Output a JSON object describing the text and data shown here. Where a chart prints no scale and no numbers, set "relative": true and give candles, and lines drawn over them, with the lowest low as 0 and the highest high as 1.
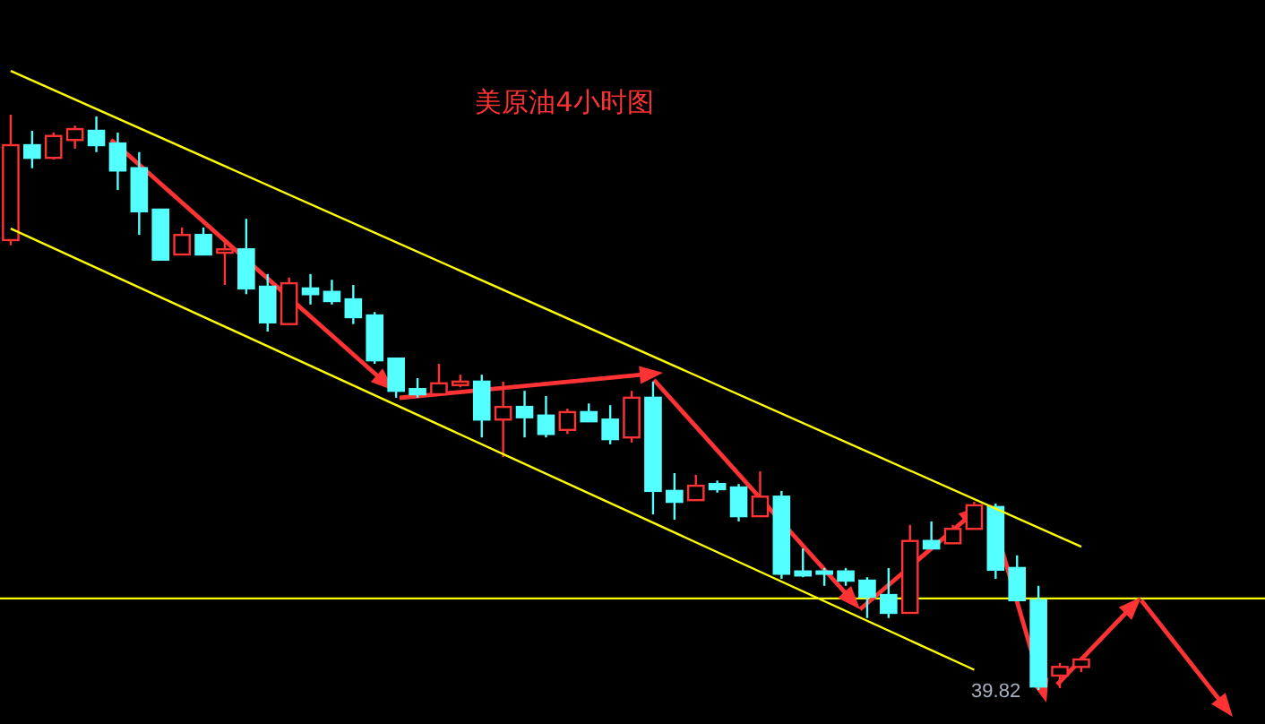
{
  "chart_data": {
    "type": "candlestick",
    "title": "美原油4小时图",
    "relative": true,
    "categories": [
      null,
      null,
      null,
      null,
      null,
      null,
      null,
      null,
      null,
      null,
      null,
      null,
      null,
      null,
      null,
      null,
      null,
      null,
      null,
      null,
      null,
      null,
      null,
      null,
      null,
      null,
      null,
      null,
      null,
      null,
      null,
      null,
      null,
      null,
      null,
      null,
      null,
      null,
      null,
      null,
      null,
      null,
      null,
      null,
      null,
      null,
      null,
      null,
      null,
      null,
      null
    ],
    "ohlc": [
      [
        0.782,
        1,
        0.773,
        0.947
      ],
      [
        0.947,
        0.972,
        0.907,
        0.925
      ],
      [
        0.925,
        0.969,
        0.922,
        0.963
      ],
      [
        0.956,
        0.981,
        0.941,
        0.975
      ],
      [
        0.972,
        0.997,
        0.935,
        0.947
      ],
      [
        0.95,
        0.969,
        0.869,
        0.903
      ],
      [
        0.907,
        0.935,
        0.791,
        0.832
      ],
      [
        0.835,
        0.835,
        0.748,
        0.748
      ],
      [
        0.757,
        0.804,
        0.757,
        0.791
      ],
      [
        0.791,
        0.804,
        0.757,
        0.757
      ],
      [
        0.76,
        0.785,
        0.704,
        0.766
      ],
      [
        0.766,
        0.819,
        0.688,
        0.698
      ],
      [
        0.701,
        0.723,
        0.623,
        0.639
      ],
      [
        0.636,
        0.717,
        0.636,
        0.707
      ],
      [
        0.698,
        0.723,
        0.67,
        0.688
      ],
      [
        0.692,
        0.713,
        0.67,
        0.676
      ],
      [
        0.679,
        0.704,
        0.636,
        0.648
      ],
      [
        0.651,
        0.657,
        0.567,
        0.573
      ],
      [
        0.576,
        0.576,
        0.508,
        0.52
      ],
      [
        0.523,
        0.542,
        0.508,
        0.514
      ],
      [
        0.514,
        0.567,
        0.514,
        0.533
      ],
      [
        0.53,
        0.548,
        0.526,
        0.536
      ],
      [
        0.536,
        0.548,
        0.439,
        0.47
      ],
      [
        0.47,
        0.536,
        0.405,
        0.492
      ],
      [
        0.492,
        0.52,
        0.439,
        0.474
      ],
      [
        0.477,
        0.511,
        0.439,
        0.445
      ],
      [
        0.452,
        0.489,
        0.445,
        0.483
      ],
      [
        0.483,
        0.498,
        0.467,
        0.467
      ],
      [
        0.47,
        0.495,
        0.427,
        0.436
      ],
      [
        0.439,
        0.52,
        0.43,
        0.508
      ],
      [
        0.508,
        0.536,
        0.305,
        0.346
      ],
      [
        0.346,
        0.377,
        0.296,
        0.327
      ],
      [
        0.33,
        0.374,
        0.33,
        0.355
      ],
      [
        0.358,
        0.364,
        0.343,
        0.349
      ],
      [
        0.352,
        0.358,
        0.293,
        0.302
      ],
      [
        0.302,
        0.38,
        0.302,
        0.336
      ],
      [
        0.336,
        0.346,
        0.193,
        0.202
      ],
      [
        0.206,
        0.246,
        0.196,
        0.199
      ],
      [
        0.206,
        0.212,
        0.181,
        0.202
      ],
      [
        0.206,
        0.212,
        0.181,
        0.19
      ],
      [
        0.19,
        0.196,
        0.125,
        0.162
      ],
      [
        0.165,
        0.212,
        0.125,
        0.134
      ],
      [
        0.134,
        0.287,
        0.134,
        0.259
      ],
      [
        0.259,
        0.293,
        0.246,
        0.246
      ],
      [
        0.255,
        0.287,
        0.255,
        0.28
      ],
      [
        0.28,
        0.327,
        0.28,
        0.321
      ],
      [
        0.318,
        0.324,
        0.193,
        0.209
      ],
      [
        0.212,
        0.234,
        0.156,
        0.156
      ],
      [
        0.156,
        0.181,
        0,
        0.006
      ],
      [
        0.025,
        0.047,
        0.003,
        0.04
      ],
      [
        0.04,
        0.053,
        0.031,
        0.053
      ]
    ],
    "colors": [
      "#ff3333",
      "#54ffff",
      "#ff3333",
      "#ff3333",
      "#54ffff",
      "#54ffff",
      "#54ffff",
      "#54ffff",
      "#ff3333",
      "#54ffff",
      "#ff3333",
      "#54ffff",
      "#54ffff",
      "#ff3333",
      "#54ffff",
      "#54ffff",
      "#54ffff",
      "#54ffff",
      "#54ffff",
      "#54ffff",
      "#ff3333",
      "#ff3333",
      "#54ffff",
      "#ff3333",
      "#54ffff",
      "#54ffff",
      "#ff3333",
      "#54ffff",
      "#54ffff",
      "#ff3333",
      "#54ffff",
      "#54ffff",
      "#ff3333",
      "#54ffff",
      "#54ffff",
      "#ff3333",
      "#54ffff",
      "#54ffff",
      "#54ffff",
      "#54ffff",
      "#54ffff",
      "#54ffff",
      "#ff3333",
      "#54ffff",
      "#ff3333",
      "#ff3333",
      "#54ffff",
      "#54ffff",
      "#54ffff",
      "#ff3333",
      "#ff3333"
    ],
    "series": [
      {
        "type": "line",
        "color": "#ffff00",
        "values": [
          1.076,
          null,
          null,
          null,
          null,
          null,
          null,
          null,
          null,
          null,
          null,
          null,
          null,
          null,
          null,
          null,
          null,
          null,
          null,
          null,
          null,
          null,
          null,
          null,
          null,
          null,
          null,
          null,
          null,
          null,
          null,
          null,
          null,
          null,
          null,
          null,
          null,
          null,
          null,
          null,
          null,
          null,
          null,
          null,
          null,
          null,
          null,
          null,
          null,
          null,
          0.249
        ]
      },
      {
        "type": "line",
        "color": "#ffff00",
        "values": [
          0.802,
          null,
          null,
          null,
          null,
          null,
          null,
          null,
          null,
          null,
          null,
          null,
          null,
          null,
          null,
          null,
          null,
          null,
          null,
          null,
          null,
          null,
          null,
          null,
          null,
          null,
          null,
          null,
          null,
          null,
          null,
          null,
          null,
          null,
          null,
          null,
          null,
          null,
          null,
          null,
          null,
          null,
          null,
          null,
          null,
          0.035,
          null,
          null,
          null,
          null,
          null
        ]
      }
    ],
    "ref_lines": [
      {
        "axis": "y",
        "value": 0.159,
        "color": "#ffff00"
      }
    ],
    "annotations": [
      "39.82"
    ]
  }
}
